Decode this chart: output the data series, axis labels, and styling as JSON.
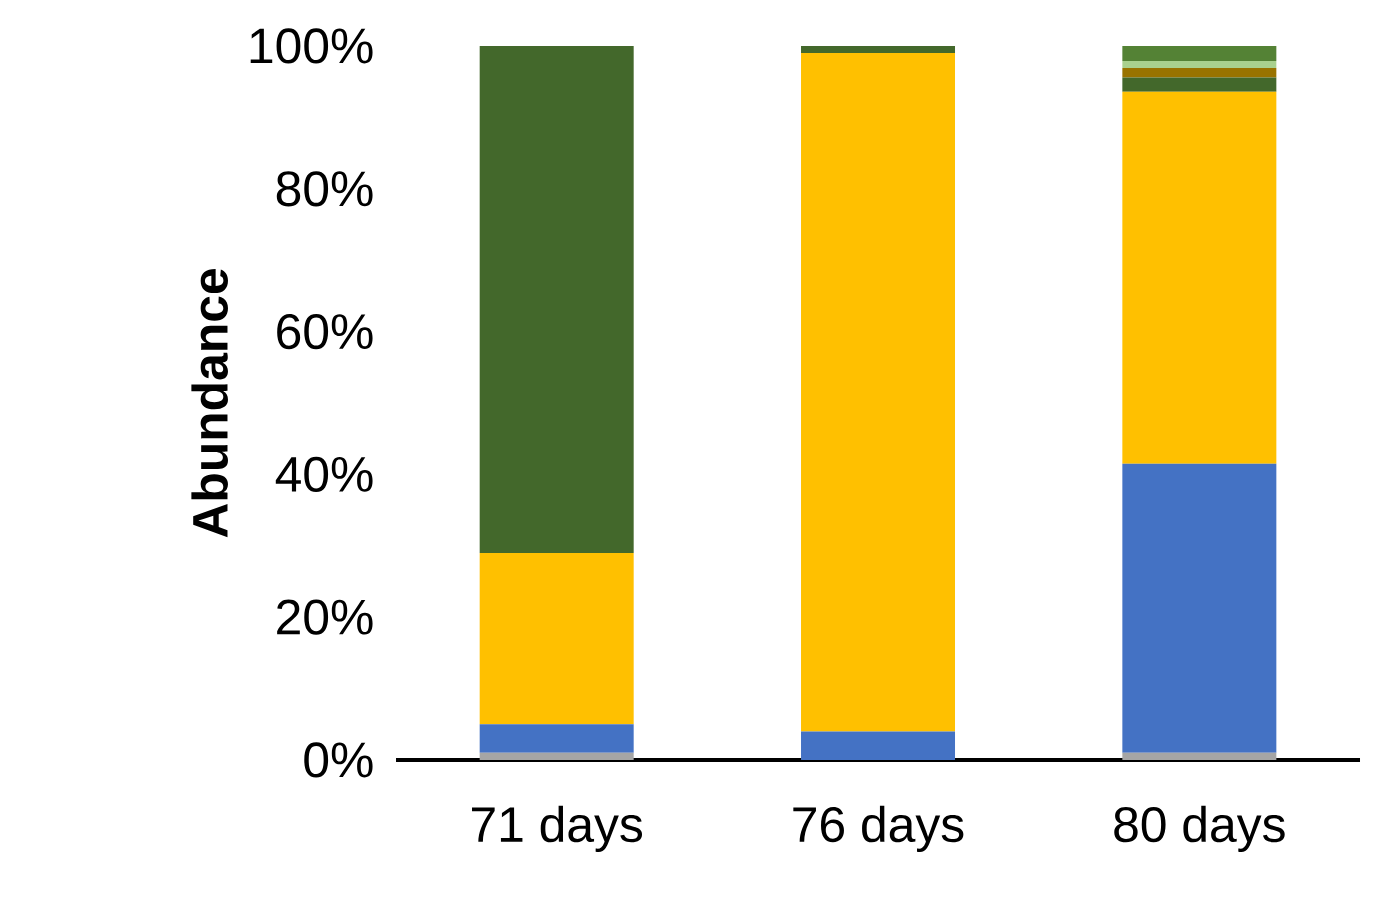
{
  "chart_data": {
    "type": "bar",
    "stacked": true,
    "ylabel": "Abundance",
    "categories": [
      "71 days",
      "76 days",
      "80 days"
    ],
    "series": [
      {
        "color": "#a5a5a5",
        "values": [
          1,
          0,
          1
        ]
      },
      {
        "color": "#4472c4",
        "values": [
          4,
          4,
          40.5
        ]
      },
      {
        "color": "#ffc000",
        "values": [
          24,
          95,
          52.1
        ]
      },
      {
        "color": "#43682b",
        "values": [
          71,
          1,
          2
        ]
      },
      {
        "color": "#997300",
        "values": [
          0,
          0,
          1.3
        ]
      },
      {
        "color": "#a9d18e",
        "values": [
          0,
          0,
          1
        ]
      },
      {
        "color": "#548235",
        "values": [
          0,
          0,
          2.1
        ]
      }
    ],
    "ylim": [
      0,
      100
    ],
    "yticks": [
      {
        "value": 0,
        "label": "0%"
      },
      {
        "value": 20,
        "label": "20%"
      },
      {
        "value": 40,
        "label": "40%"
      },
      {
        "value": 60,
        "label": "60%"
      },
      {
        "value": 80,
        "label": "80%"
      },
      {
        "value": 100,
        "label": "100%"
      }
    ],
    "grid": false
  }
}
